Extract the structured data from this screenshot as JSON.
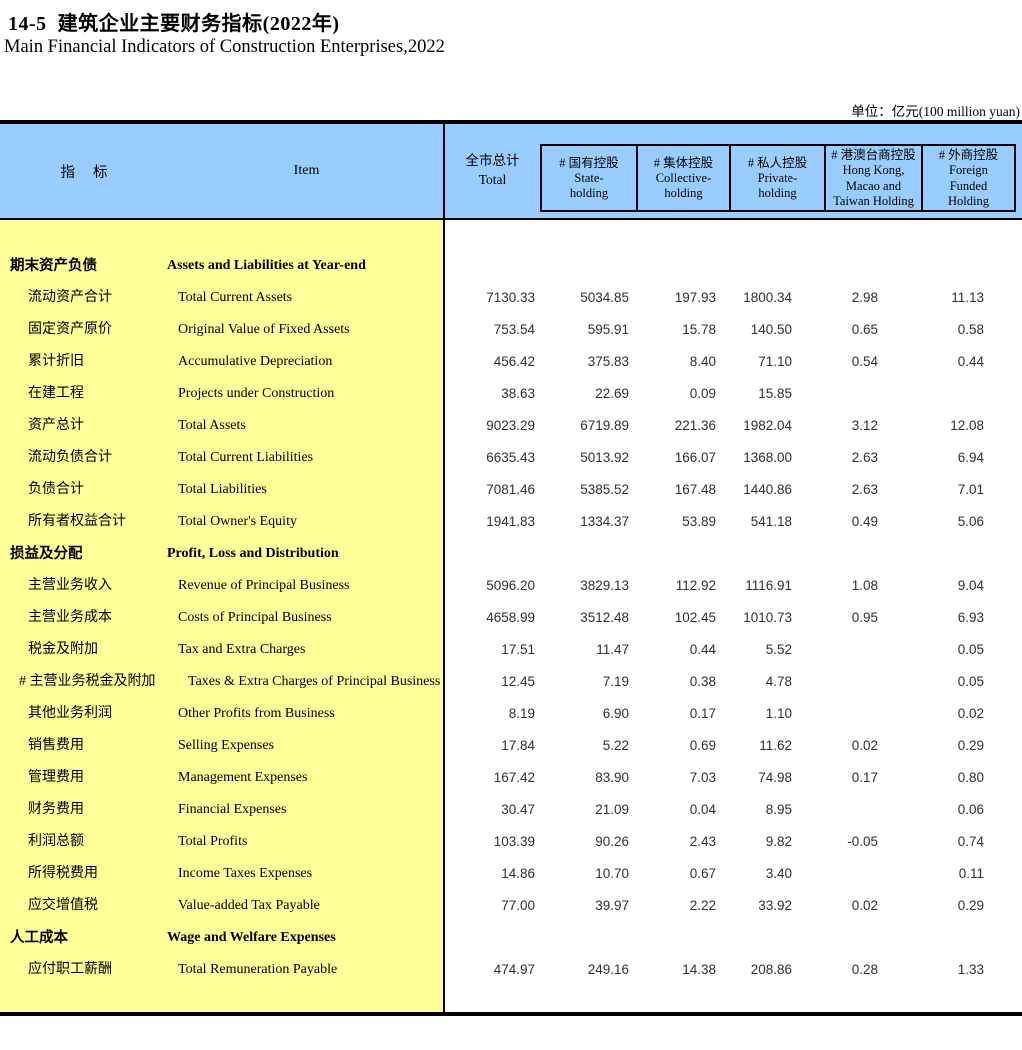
{
  "page": {
    "title_cn": "14-5  建筑企业主要财务指标(2022年)",
    "title_en": "Main Financial Indicators of Construction Enterprises,2022",
    "unit_label": "单位：亿元(100 million yuan)"
  },
  "colors": {
    "header_background": "#99CCFF",
    "label_background": "#FFFF99",
    "border": "#000000"
  },
  "table": {
    "header": {
      "indicator_cn": "指　 标",
      "indicator_en": "Item",
      "total": {
        "cn": "全市总计",
        "en": "Total"
      },
      "subcolumns": [
        {
          "cn": "# 国有控股",
          "en_lines": [
            "State-",
            "holding"
          ]
        },
        {
          "cn": "# 集体控股",
          "en_lines": [
            "Collective-",
            "holding"
          ]
        },
        {
          "cn": "# 私人控股",
          "en_lines": [
            "Private-",
            "holding"
          ]
        },
        {
          "cn": "# 港澳台商控股",
          "en_lines": [
            "Hong Kong,",
            "Macao and",
            "Taiwan Holding"
          ]
        },
        {
          "cn": "# 外商控股",
          "en_lines": [
            "Foreign",
            "Funded",
            "Holding"
          ]
        }
      ]
    },
    "rows": [
      {
        "type": "section",
        "cn": "期末资产负债",
        "en": "Assets and Liabilities at Year-end",
        "values": [
          "",
          "",
          "",
          "",
          "",
          ""
        ]
      },
      {
        "type": "item",
        "cn": "流动资产合计",
        "en": "Total Current Assets",
        "values": [
          "7130.33",
          "5034.85",
          "197.93",
          "1800.34",
          "2.98",
          "11.13"
        ]
      },
      {
        "type": "item",
        "cn": "固定资产原价",
        "en": "Original Value of Fixed Assets",
        "values": [
          "753.54",
          "595.91",
          "15.78",
          "140.50",
          "0.65",
          "0.58"
        ]
      },
      {
        "type": "item",
        "cn": "累计折旧",
        "en": "Accumulative Depreciation",
        "values": [
          "456.42",
          "375.83",
          "8.40",
          "71.10",
          "0.54",
          "0.44"
        ]
      },
      {
        "type": "item",
        "cn": "在建工程",
        "en": "Projects under Construction",
        "values": [
          "38.63",
          "22.69",
          "0.09",
          "15.85",
          "",
          ""
        ]
      },
      {
        "type": "item",
        "cn": "资产总计",
        "en": "Total Assets",
        "values": [
          "9023.29",
          "6719.89",
          "221.36",
          "1982.04",
          "3.12",
          "12.08"
        ]
      },
      {
        "type": "item",
        "cn": "流动负债合计",
        "en": "Total Current Liabilities",
        "values": [
          "6635.43",
          "5013.92",
          "166.07",
          "1368.00",
          "2.63",
          "6.94"
        ]
      },
      {
        "type": "item",
        "cn": "负债合计",
        "en": "Total Liabilities",
        "values": [
          "7081.46",
          "5385.52",
          "167.48",
          "1440.86",
          "2.63",
          "7.01"
        ]
      },
      {
        "type": "item",
        "cn": "所有者权益合计",
        "en": "Total Owner's Equity",
        "values": [
          "1941.83",
          "1334.37",
          "53.89",
          "541.18",
          "0.49",
          "5.06"
        ]
      },
      {
        "type": "section",
        "cn": "损益及分配",
        "en": "Profit, Loss and Distribution",
        "values": [
          "",
          "",
          "",
          "",
          "",
          ""
        ]
      },
      {
        "type": "item",
        "cn": "主营业务收入",
        "en": "Revenue of Principal Business",
        "values": [
          "5096.20",
          "3829.13",
          "112.92",
          "1116.91",
          "1.08",
          "9.04"
        ]
      },
      {
        "type": "item",
        "cn": "主营业务成本",
        "en": "Costs of Principal Business",
        "values": [
          "4658.99",
          "3512.48",
          "102.45",
          "1010.73",
          "0.95",
          "6.93"
        ]
      },
      {
        "type": "item",
        "cn": "税金及附加",
        "en": "Tax and Extra Charges",
        "values": [
          "17.51",
          "11.47",
          "0.44",
          "5.52",
          "",
          "0.05"
        ]
      },
      {
        "type": "subitem",
        "cn": "#  主营业务税金及附加",
        "en": "Taxes & Extra Charges of Principal Business",
        "values": [
          "12.45",
          "7.19",
          "0.38",
          "4.78",
          "",
          "0.05"
        ]
      },
      {
        "type": "item",
        "cn": "其他业务利润",
        "en": "Other Profits from Business",
        "values": [
          "8.19",
          "6.90",
          "0.17",
          "1.10",
          "",
          "0.02"
        ]
      },
      {
        "type": "item",
        "cn": "销售费用",
        "en": "Selling Expenses",
        "values": [
          "17.84",
          "5.22",
          "0.69",
          "11.62",
          "0.02",
          "0.29"
        ]
      },
      {
        "type": "item",
        "cn": "管理费用",
        "en": "Management Expenses",
        "values": [
          "167.42",
          "83.90",
          "7.03",
          "74.98",
          "0.17",
          "0.80"
        ]
      },
      {
        "type": "item",
        "cn": "财务费用",
        "en": "Financial Expenses",
        "values": [
          "30.47",
          "21.09",
          "0.04",
          "8.95",
          "",
          "0.06"
        ]
      },
      {
        "type": "item",
        "cn": "利润总额",
        "en": "Total Profits",
        "values": [
          "103.39",
          "90.26",
          "2.43",
          "9.82",
          "-0.05",
          "0.74"
        ]
      },
      {
        "type": "item",
        "cn": "所得税费用",
        "en": "Income Taxes Expenses",
        "values": [
          "14.86",
          "10.70",
          "0.67",
          "3.40",
          "",
          "0.11"
        ]
      },
      {
        "type": "item",
        "cn": "应交增值税",
        "en": "Value-added Tax Payable",
        "values": [
          "77.00",
          "39.97",
          "2.22",
          "33.92",
          "0.02",
          "0.29"
        ]
      },
      {
        "type": "section",
        "cn": "人工成本",
        "en": "Wage and Welfare Expenses",
        "values": [
          "",
          "",
          "",
          "",
          "",
          ""
        ]
      },
      {
        "type": "item",
        "cn": "应付职工薪酬",
        "en": "Total Remuneration Payable",
        "values": [
          "474.97",
          "249.16",
          "14.38",
          "208.86",
          "0.28",
          "1.33"
        ]
      }
    ]
  }
}
